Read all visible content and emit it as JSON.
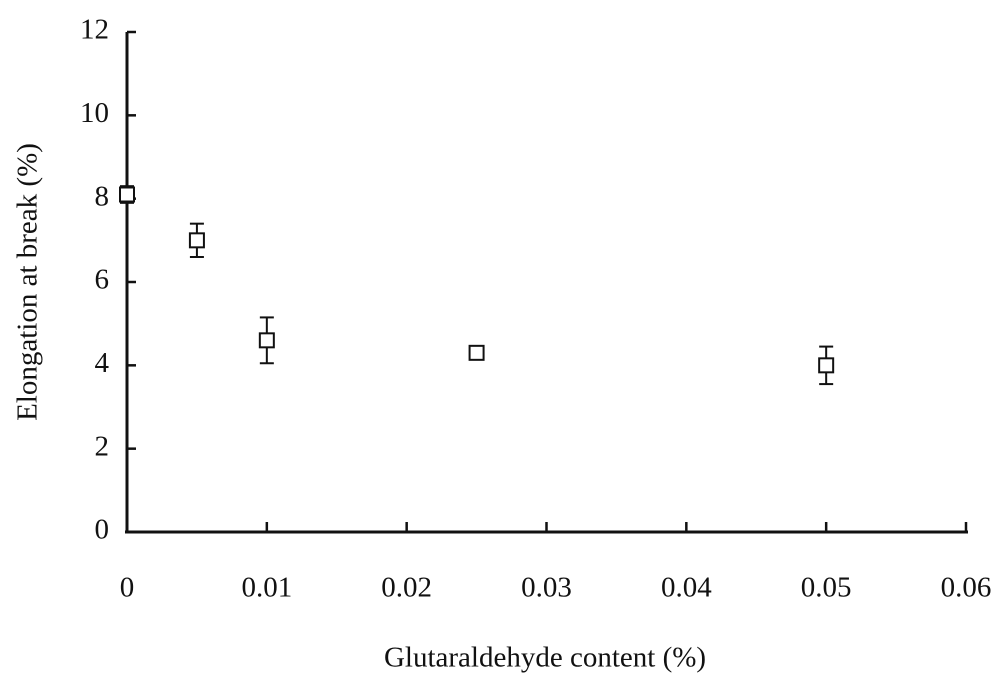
{
  "chart_data": {
    "type": "scatter",
    "xlabel": "Glutaraldehyde content (%)",
    "ylabel": "Elongation at break (%)",
    "x": [
      0,
      0.005,
      0.01,
      0.025,
      0.05
    ],
    "values": [
      8.1,
      7.0,
      4.6,
      4.3,
      4.0
    ],
    "errors": [
      0.2,
      0.4,
      0.55,
      0.15,
      0.45
    ],
    "color": "#111111",
    "xlim": [
      0,
      0.06
    ],
    "xticks": [
      0,
      0.01,
      0.02,
      0.03,
      0.04,
      0.05,
      0.06
    ],
    "ylim": [
      0,
      12
    ],
    "yticks": [
      0,
      2,
      4,
      6,
      8,
      10,
      12
    ],
    "grid": false
  }
}
